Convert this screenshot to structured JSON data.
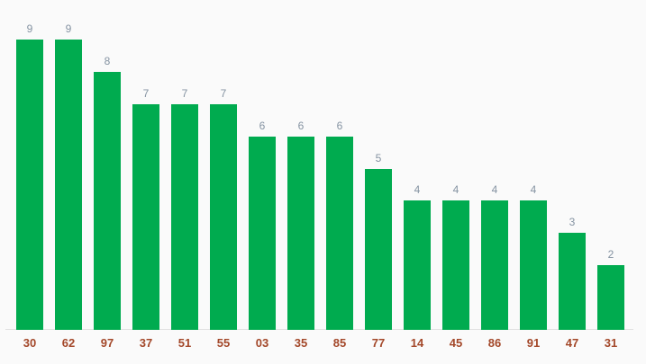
{
  "background_color": "#fafafa",
  "chart_data": {
    "type": "bar",
    "title": "",
    "xlabel": "",
    "ylabel": "",
    "categories": [
      "30",
      "62",
      "97",
      "37",
      "51",
      "55",
      "03",
      "35",
      "85",
      "77",
      "14",
      "45",
      "86",
      "91",
      "47",
      "31"
    ],
    "values": [
      9,
      9,
      8,
      7,
      7,
      7,
      6,
      6,
      6,
      5,
      4,
      4,
      4,
      4,
      3,
      2
    ],
    "ylim": [
      0,
      9
    ],
    "grid": false,
    "legend": "none",
    "value_labels_shown": true,
    "bar_color": "#00ab4f",
    "value_label_color": "#8593a2",
    "category_label_color": "#a34729",
    "baseline_color": "#e0e0e0"
  }
}
